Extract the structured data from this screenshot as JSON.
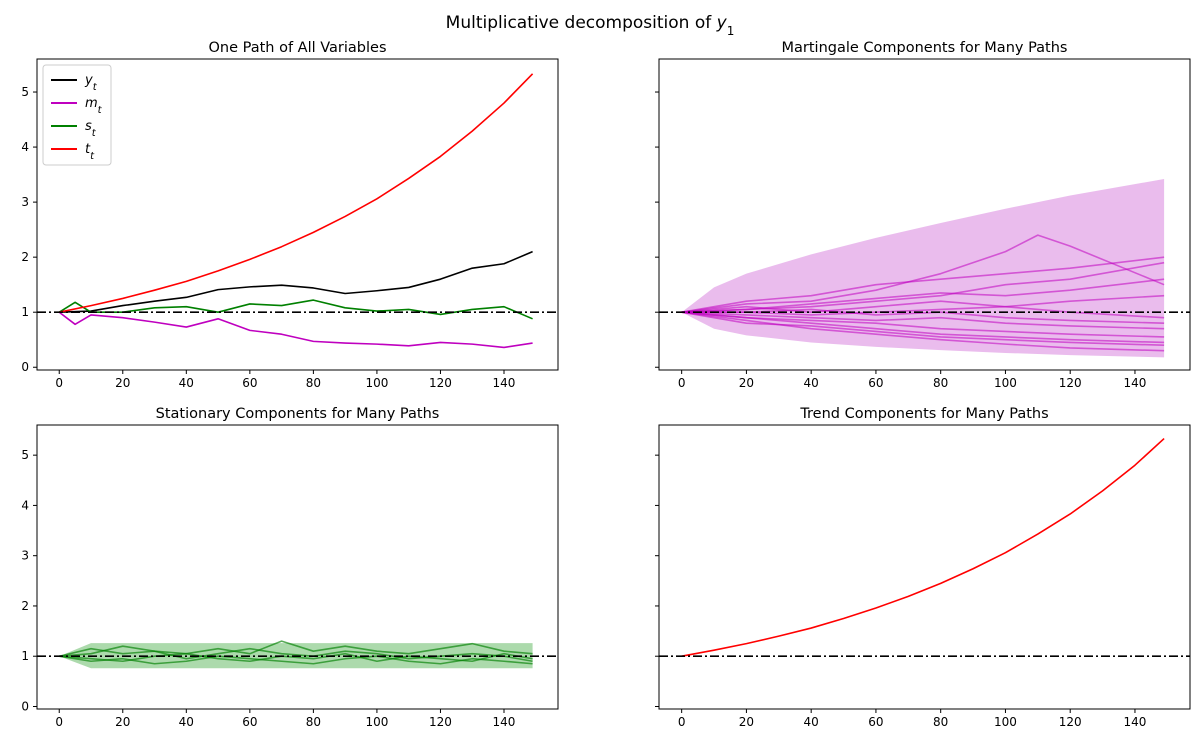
{
  "suptitle": {
    "prefix": "Multiplicative decomposition of ",
    "var": "y",
    "sub": "1"
  },
  "colors": {
    "y": "#000000",
    "m": "#bf00bf",
    "s": "#008000",
    "t": "#ff0000",
    "m_band": "#e9b8ec",
    "s_band": "#a8d8a8"
  },
  "chart_data": [
    {
      "id": "one-path",
      "type": "line",
      "title": "One Path of All Variables",
      "xlim": [
        -7,
        157
      ],
      "ylim": [
        -0.05,
        5.6
      ],
      "xticks": [
        0,
        20,
        40,
        60,
        80,
        100,
        120,
        140
      ],
      "yticks": [
        0,
        1,
        2,
        3,
        4,
        5
      ],
      "show_ytick_labels": true,
      "hline": 1,
      "legend": [
        {
          "sym": "y",
          "sub": "t",
          "color": "#000000"
        },
        {
          "sym": "m",
          "sub": "t",
          "color": "#bf00bf"
        },
        {
          "sym": "s",
          "sub": "t",
          "color": "#008000"
        },
        {
          "sym": "t",
          "sub": "t",
          "color": "#ff0000"
        }
      ],
      "series": [
        {
          "name": "y_t",
          "color": "#000000",
          "x": [
            0,
            10,
            20,
            30,
            40,
            50,
            60,
            70,
            80,
            90,
            100,
            110,
            120,
            130,
            140,
            149
          ],
          "y": [
            1.0,
            1.02,
            1.12,
            1.2,
            1.27,
            1.41,
            1.46,
            1.49,
            1.44,
            1.34,
            1.39,
            1.45,
            1.6,
            1.8,
            1.88,
            2.1
          ]
        },
        {
          "name": "m_t",
          "color": "#bf00bf",
          "x": [
            0,
            5,
            10,
            20,
            30,
            40,
            50,
            60,
            70,
            80,
            90,
            100,
            110,
            120,
            130,
            140,
            149
          ],
          "y": [
            1.0,
            0.78,
            0.95,
            0.9,
            0.82,
            0.73,
            0.88,
            0.67,
            0.6,
            0.47,
            0.44,
            0.42,
            0.39,
            0.45,
            0.42,
            0.36,
            0.44
          ]
        },
        {
          "name": "s_t",
          "color": "#008000",
          "x": [
            0,
            5,
            10,
            20,
            30,
            40,
            50,
            60,
            70,
            80,
            90,
            100,
            110,
            120,
            130,
            140,
            149
          ],
          "y": [
            1.0,
            1.18,
            1.0,
            1.0,
            1.08,
            1.1,
            1.0,
            1.15,
            1.12,
            1.22,
            1.08,
            1.02,
            1.05,
            0.96,
            1.05,
            1.1,
            0.88
          ]
        },
        {
          "name": "t_t",
          "color": "#ff0000",
          "x": [
            0,
            10,
            20,
            30,
            40,
            50,
            60,
            70,
            80,
            90,
            100,
            110,
            120,
            130,
            140,
            149
          ],
          "y": [
            1.0,
            1.12,
            1.25,
            1.4,
            1.56,
            1.75,
            1.96,
            2.19,
            2.45,
            2.74,
            3.06,
            3.43,
            3.83,
            4.29,
            4.8,
            5.33
          ]
        }
      ]
    },
    {
      "id": "martingale",
      "type": "line",
      "title": "Martingale Components for Many Paths",
      "xlim": [
        -7,
        157
      ],
      "ylim": [
        -0.05,
        5.6
      ],
      "xticks": [
        0,
        20,
        40,
        60,
        80,
        100,
        120,
        140
      ],
      "yticks": [
        0,
        1,
        2,
        3,
        4,
        5
      ],
      "show_ytick_labels": false,
      "hline": 1,
      "band": {
        "x": [
          0,
          10,
          20,
          40,
          60,
          80,
          100,
          120,
          149
        ],
        "upper": [
          1.0,
          1.45,
          1.7,
          2.05,
          2.35,
          2.62,
          2.88,
          3.12,
          3.42
        ],
        "lower": [
          1.0,
          0.7,
          0.58,
          0.45,
          0.37,
          0.31,
          0.26,
          0.22,
          0.18
        ]
      },
      "series": [
        {
          "name": "path-1",
          "color": "#bf00bf",
          "x": [
            0,
            20,
            40,
            60,
            80,
            100,
            120,
            149
          ],
          "y": [
            1.0,
            1.05,
            1.1,
            1.2,
            1.3,
            1.5,
            1.6,
            1.9
          ]
        },
        {
          "name": "path-2",
          "color": "#bf00bf",
          "x": [
            0,
            20,
            40,
            60,
            80,
            100,
            110,
            120,
            149
          ],
          "y": [
            1.0,
            1.15,
            1.2,
            1.4,
            1.7,
            2.1,
            2.4,
            2.2,
            1.5
          ]
        },
        {
          "name": "path-3",
          "color": "#bf00bf",
          "x": [
            0,
            20,
            40,
            60,
            80,
            100,
            120,
            149
          ],
          "y": [
            1.0,
            0.9,
            0.8,
            0.7,
            0.6,
            0.55,
            0.5,
            0.45
          ]
        },
        {
          "name": "path-4",
          "color": "#bf00bf",
          "x": [
            0,
            20,
            40,
            60,
            80,
            100,
            120,
            149
          ],
          "y": [
            1.0,
            1.0,
            0.95,
            1.0,
            1.05,
            1.1,
            1.2,
            1.3
          ]
        },
        {
          "name": "path-5",
          "color": "#bf00bf",
          "x": [
            0,
            20,
            40,
            60,
            80,
            100,
            120,
            149
          ],
          "y": [
            1.0,
            0.85,
            0.7,
            0.6,
            0.5,
            0.42,
            0.35,
            0.3
          ]
        },
        {
          "name": "path-6",
          "color": "#bf00bf",
          "x": [
            0,
            20,
            40,
            60,
            80,
            100,
            120,
            149
          ],
          "y": [
            1.0,
            1.2,
            1.3,
            1.5,
            1.6,
            1.7,
            1.8,
            2.0
          ]
        },
        {
          "name": "path-7",
          "color": "#bf00bf",
          "x": [
            0,
            20,
            40,
            60,
            80,
            100,
            120,
            149
          ],
          "y": [
            1.0,
            0.95,
            0.9,
            0.85,
            0.9,
            0.8,
            0.75,
            0.7
          ]
        },
        {
          "name": "path-8",
          "color": "#bf00bf",
          "x": [
            0,
            20,
            40,
            60,
            80,
            100,
            120,
            149
          ],
          "y": [
            1.0,
            1.1,
            1.0,
            1.1,
            1.2,
            1.1,
            1.0,
            0.9
          ]
        },
        {
          "name": "path-9",
          "color": "#bf00bf",
          "x": [
            0,
            20,
            40,
            60,
            80,
            100,
            120,
            149
          ],
          "y": [
            1.0,
            0.8,
            0.75,
            0.65,
            0.55,
            0.5,
            0.45,
            0.4
          ]
        },
        {
          "name": "path-10",
          "color": "#bf00bf",
          "x": [
            0,
            20,
            40,
            60,
            80,
            100,
            120,
            149
          ],
          "y": [
            1.0,
            1.05,
            1.15,
            1.25,
            1.35,
            1.3,
            1.4,
            1.6
          ]
        },
        {
          "name": "path-11",
          "color": "#bf00bf",
          "x": [
            0,
            20,
            40,
            60,
            80,
            100,
            120,
            149
          ],
          "y": [
            1.0,
            0.9,
            0.85,
            0.8,
            0.7,
            0.65,
            0.6,
            0.55
          ]
        },
        {
          "name": "path-12",
          "color": "#bf00bf",
          "x": [
            0,
            20,
            40,
            60,
            80,
            100,
            120,
            149
          ],
          "y": [
            1.0,
            1.0,
            1.05,
            0.95,
            1.0,
            0.9,
            0.85,
            0.8
          ]
        }
      ]
    },
    {
      "id": "stationary",
      "type": "line",
      "title": "Stationary Components for Many Paths",
      "xlim": [
        -7,
        157
      ],
      "ylim": [
        -0.05,
        5.6
      ],
      "xticks": [
        0,
        20,
        40,
        60,
        80,
        100,
        120,
        140
      ],
      "yticks": [
        0,
        1,
        2,
        3,
        4,
        5
      ],
      "show_ytick_labels": true,
      "hline": 1,
      "band": {
        "x": [
          0,
          10,
          149
        ],
        "upper": [
          1.0,
          1.26,
          1.26
        ],
        "lower": [
          1.0,
          0.76,
          0.76
        ]
      },
      "series": [
        {
          "name": "path-1",
          "color": "#008000",
          "x": [
            0,
            10,
            20,
            30,
            40,
            50,
            60,
            70,
            80,
            90,
            100,
            110,
            120,
            130,
            140,
            149
          ],
          "y": [
            1.0,
            1.15,
            1.05,
            1.1,
            0.95,
            1.05,
            1.15,
            1.05,
            1.0,
            1.1,
            1.05,
            0.95,
            1.0,
            1.05,
            1.0,
            0.9
          ]
        },
        {
          "name": "path-2",
          "color": "#008000",
          "x": [
            0,
            10,
            20,
            30,
            40,
            50,
            60,
            70,
            80,
            90,
            100,
            110,
            120,
            130,
            140,
            149
          ],
          "y": [
            1.0,
            0.95,
            0.9,
            1.0,
            1.05,
            0.95,
            0.9,
            1.0,
            0.95,
            1.05,
            0.9,
            1.0,
            0.95,
            0.9,
            1.05,
            0.95
          ]
        },
        {
          "name": "path-3",
          "color": "#008000",
          "x": [
            0,
            10,
            20,
            30,
            40,
            50,
            60,
            70,
            80,
            90,
            100,
            110,
            120,
            130,
            140,
            149
          ],
          "y": [
            1.0,
            1.05,
            1.2,
            1.1,
            1.05,
            1.15,
            1.05,
            1.3,
            1.1,
            1.2,
            1.1,
            1.05,
            1.15,
            1.25,
            1.1,
            1.05
          ]
        },
        {
          "name": "path-4",
          "color": "#008000",
          "x": [
            0,
            10,
            20,
            30,
            40,
            50,
            60,
            70,
            80,
            90,
            100,
            110,
            120,
            130,
            140,
            149
          ],
          "y": [
            1.0,
            0.9,
            0.95,
            0.85,
            0.9,
            1.0,
            0.95,
            0.9,
            0.85,
            0.95,
            1.0,
            0.9,
            0.85,
            0.95,
            0.9,
            0.85
          ]
        }
      ]
    },
    {
      "id": "trend",
      "type": "line",
      "title": "Trend Components for Many Paths",
      "xlim": [
        -7,
        157
      ],
      "ylim": [
        -0.05,
        5.6
      ],
      "xticks": [
        0,
        20,
        40,
        60,
        80,
        100,
        120,
        140
      ],
      "yticks": [
        0,
        1,
        2,
        3,
        4,
        5
      ],
      "show_ytick_labels": false,
      "hline": 1,
      "series": [
        {
          "name": "trend",
          "color": "#ff0000",
          "x": [
            0,
            10,
            20,
            30,
            40,
            50,
            60,
            70,
            80,
            90,
            100,
            110,
            120,
            130,
            140,
            149
          ],
          "y": [
            1.0,
            1.12,
            1.25,
            1.4,
            1.56,
            1.75,
            1.96,
            2.19,
            2.45,
            2.74,
            3.06,
            3.43,
            3.83,
            4.29,
            4.8,
            5.33
          ]
        }
      ]
    }
  ]
}
